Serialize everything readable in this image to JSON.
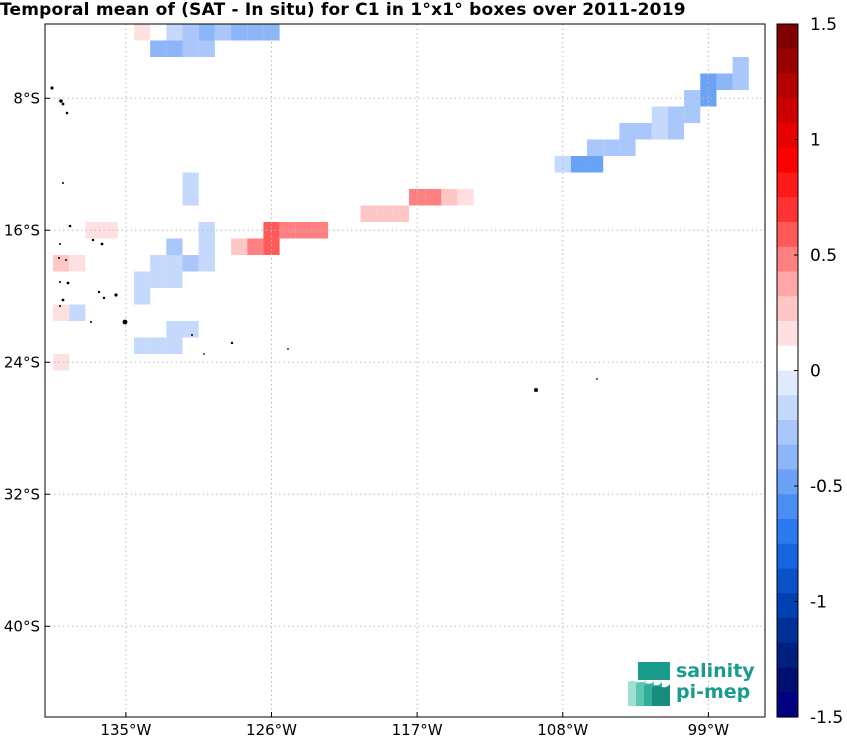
{
  "title": "Temporal mean of (SAT - In situ) for C1 in 1°x1° boxes over 2011-2019",
  "logo": {
    "line1": "salinity",
    "line2": "pi-mep"
  },
  "x_tick_labels": [
    "135°W",
    "126°W",
    "117°W",
    "108°W",
    "99°W"
  ],
  "y_tick_labels": [
    "8°S",
    "16°S",
    "24°S",
    "32°S",
    "40°S"
  ],
  "colorbar": {
    "range": [
      -1.5,
      1.5
    ],
    "tick_labels": [
      "1.5",
      "1",
      "0.5",
      "0",
      "-0.5",
      "-1",
      "-1.5"
    ],
    "colors_top_to_bottom": [
      "#800000",
      "#990000",
      "#b30000",
      "#cc0000",
      "#e60000",
      "#ff0000",
      "#ff1a1a",
      "#ff3333",
      "#ff5959",
      "#ff8080",
      "#ffa6a6",
      "#ffc6c6",
      "#ffe0e0",
      "#ffffff",
      "#dfeafe",
      "#c4d9fc",
      "#a9c7fa",
      "#8db6f8",
      "#6aa2f6",
      "#4a8ef3",
      "#2b7af0",
      "#1666e0",
      "#0a52c8",
      "#0040b0",
      "#002f98",
      "#002080",
      "#001070",
      "#000080"
    ]
  },
  "chart_data": {
    "type": "heatmap",
    "title": "Temporal mean of (SAT - In situ) for C1 in 1°x1° boxes over 2011-2019",
    "xlabel": "",
    "ylabel": "",
    "lon_ticks": [
      -135,
      -126,
      -117,
      -108,
      -99
    ],
    "lat_ticks": [
      -8,
      -16,
      -24,
      -32,
      -40
    ],
    "lon_range": [
      -140,
      -95.5
    ],
    "lat_range": [
      -45.5,
      -3.5
    ],
    "value_range": [
      -1.5,
      1.5
    ],
    "cells": [
      {
        "lon": -134,
        "lat": -4,
        "value": 0.15
      },
      {
        "lon": -132,
        "lat": -4,
        "value": -0.15
      },
      {
        "lon": -131,
        "lat": -4,
        "value": -0.25
      },
      {
        "lon": -130,
        "lat": -4,
        "value": -0.35
      },
      {
        "lon": -129,
        "lat": -4,
        "value": -0.25
      },
      {
        "lon": -128,
        "lat": -4,
        "value": -0.35
      },
      {
        "lon": -127,
        "lat": -4,
        "value": -0.35
      },
      {
        "lon": -126,
        "lat": -4,
        "value": -0.35
      },
      {
        "lon": -133,
        "lat": -5,
        "value": -0.35
      },
      {
        "lon": -132,
        "lat": -5,
        "value": -0.35
      },
      {
        "lon": -131,
        "lat": -5,
        "value": -0.25
      },
      {
        "lon": -130,
        "lat": -5,
        "value": -0.25
      },
      {
        "lon": -97,
        "lat": -6,
        "value": -0.25
      },
      {
        "lon": -99,
        "lat": -7,
        "value": -0.45
      },
      {
        "lon": -98,
        "lat": -7,
        "value": -0.35
      },
      {
        "lon": -97,
        "lat": -7,
        "value": -0.25
      },
      {
        "lon": -100,
        "lat": -8,
        "value": -0.25
      },
      {
        "lon": -99,
        "lat": -8,
        "value": -0.45
      },
      {
        "lon": -102,
        "lat": -9,
        "value": -0.15
      },
      {
        "lon": -101,
        "lat": -9,
        "value": -0.25
      },
      {
        "lon": -100,
        "lat": -9,
        "value": -0.25
      },
      {
        "lon": -104,
        "lat": -10,
        "value": -0.25
      },
      {
        "lon": -103,
        "lat": -10,
        "value": -0.25
      },
      {
        "lon": -102,
        "lat": -10,
        "value": -0.15
      },
      {
        "lon": -101,
        "lat": -10,
        "value": -0.25
      },
      {
        "lon": -106,
        "lat": -11,
        "value": -0.25
      },
      {
        "lon": -105,
        "lat": -11,
        "value": -0.25
      },
      {
        "lon": -104,
        "lat": -11,
        "value": -0.25
      },
      {
        "lon": -108,
        "lat": -12,
        "value": -0.15
      },
      {
        "lon": -107,
        "lat": -12,
        "value": -0.45
      },
      {
        "lon": -106,
        "lat": -12,
        "value": -0.45
      },
      {
        "lon": -131,
        "lat": -13,
        "value": -0.15
      },
      {
        "lon": -131,
        "lat": -14,
        "value": -0.15
      },
      {
        "lon": -117,
        "lat": -14,
        "value": 0.45
      },
      {
        "lon": -116,
        "lat": -14,
        "value": 0.45
      },
      {
        "lon": -115,
        "lat": -14,
        "value": 0.25
      },
      {
        "lon": -114,
        "lat": -14,
        "value": 0.15
      },
      {
        "lon": -120,
        "lat": -15,
        "value": 0.25
      },
      {
        "lon": -119,
        "lat": -15,
        "value": 0.25
      },
      {
        "lon": -118,
        "lat": -15,
        "value": 0.25
      },
      {
        "lon": -137,
        "lat": -16,
        "value": 0.15
      },
      {
        "lon": -136,
        "lat": -16,
        "value": 0.15
      },
      {
        "lon": -130,
        "lat": -16,
        "value": -0.15
      },
      {
        "lon": -126,
        "lat": -16,
        "value": 0.55
      },
      {
        "lon": -125,
        "lat": -16,
        "value": 0.45
      },
      {
        "lon": -124,
        "lat": -16,
        "value": 0.45
      },
      {
        "lon": -123,
        "lat": -16,
        "value": 0.45
      },
      {
        "lon": -132,
        "lat": -17,
        "value": -0.25
      },
      {
        "lon": -130,
        "lat": -17,
        "value": -0.15
      },
      {
        "lon": -128,
        "lat": -17,
        "value": 0.25
      },
      {
        "lon": -127,
        "lat": -17,
        "value": 0.45
      },
      {
        "lon": -126,
        "lat": -17,
        "value": 0.55
      },
      {
        "lon": -139,
        "lat": -18,
        "value": 0.25
      },
      {
        "lon": -138,
        "lat": -18,
        "value": 0.15
      },
      {
        "lon": -133,
        "lat": -18,
        "value": -0.15
      },
      {
        "lon": -132,
        "lat": -18,
        "value": -0.15
      },
      {
        "lon": -131,
        "lat": -18,
        "value": -0.25
      },
      {
        "lon": -130,
        "lat": -18,
        "value": -0.15
      },
      {
        "lon": -134,
        "lat": -19,
        "value": -0.15
      },
      {
        "lon": -133,
        "lat": -19,
        "value": -0.15
      },
      {
        "lon": -132,
        "lat": -19,
        "value": -0.15
      },
      {
        "lon": -134,
        "lat": -20,
        "value": -0.15
      },
      {
        "lon": -139,
        "lat": -21,
        "value": 0.15
      },
      {
        "lon": -138,
        "lat": -21,
        "value": -0.15
      },
      {
        "lon": -132,
        "lat": -22,
        "value": -0.15
      },
      {
        "lon": -131,
        "lat": -22,
        "value": -0.15
      },
      {
        "lon": -134,
        "lat": -23,
        "value": -0.15
      },
      {
        "lon": -133,
        "lat": -23,
        "value": -0.15
      },
      {
        "lon": -132,
        "lat": -23,
        "value": -0.15
      },
      {
        "lon": -139,
        "lat": -24,
        "value": 0.15
      }
    ]
  }
}
